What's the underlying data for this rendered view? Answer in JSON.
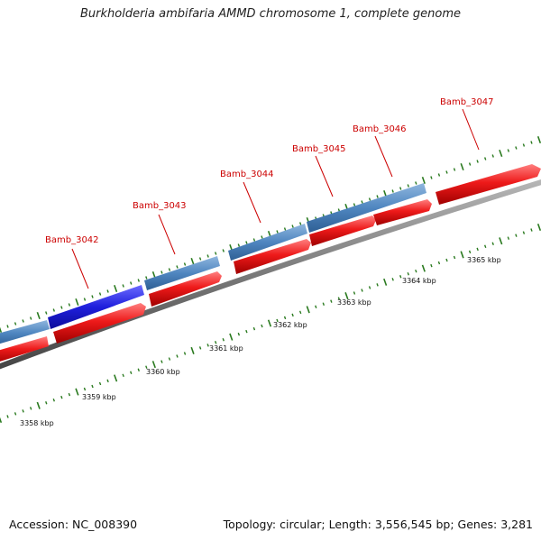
{
  "title": "Burkholderia ambifaria AMMD chromosome 1, complete genome",
  "footer": {
    "accession": "Accession: NC_008390",
    "stats": "Topology: circular; Length: 3,556,545 bp; Genes: 3,281"
  },
  "colors": {
    "cds_forward": "#4f86c0",
    "cds_highlight": "#1f1fdc",
    "gene_arrow": "#e81010",
    "backbone": "#7a7a7a",
    "tick": "#2a7a1f",
    "label": "#cc0000"
  },
  "genes": [
    {
      "name": "Bamb_3042"
    },
    {
      "name": "Bamb_3043"
    },
    {
      "name": "Bamb_3044"
    },
    {
      "name": "Bamb_3045"
    },
    {
      "name": "Bamb_3046"
    },
    {
      "name": "Bamb_3047"
    }
  ],
  "scale_labels": [
    "3358 kbp",
    "3359 kbp",
    "3360 kbp",
    "3361 kbp",
    "3362 kbp",
    "3363 kbp",
    "3364 kbp",
    "3365 kbp"
  ]
}
